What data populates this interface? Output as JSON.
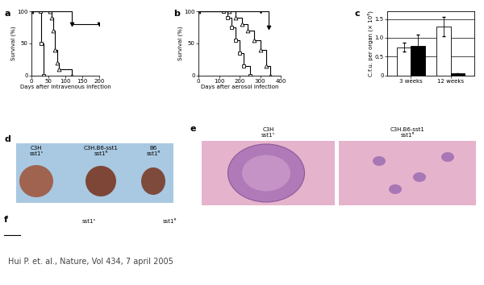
{
  "chart_data": [
    {
      "label": "a",
      "type": "line",
      "x_label": "Days after intravenous infection",
      "y_label": "Survival (%)",
      "xlim": [
        0,
        200
      ],
      "xticks": [
        0,
        50,
        100,
        150,
        200
      ],
      "ylim": [
        0,
        100
      ],
      "yticks": [
        0,
        50,
        100
      ],
      "series": [
        {
          "x": [
            0,
            25,
            28,
            35
          ],
          "values": [
            100,
            100,
            50,
            0
          ],
          "color": "#ffffff",
          "marker": "square",
          "line_style": "steps"
        },
        {
          "x": [
            0,
            55,
            60,
            65,
            70,
            75,
            80,
            120
          ],
          "values": [
            100,
            100,
            90,
            70,
            40,
            20,
            10,
            0
          ],
          "color": "#ffffff",
          "marker": "triangle",
          "line_style": "steps"
        },
        {
          "x": [
            0,
            120,
            200
          ],
          "values": [
            100,
            80,
            80
          ],
          "color": "#000000",
          "marker": "triangle_down",
          "line_style": "steps"
        }
      ]
    },
    {
      "label": "b",
      "type": "line",
      "x_label": "Days after aerosol infection",
      "y_label": "Survival (%)",
      "xlim": [
        0,
        400
      ],
      "xticks": [
        0,
        100,
        200,
        300,
        400
      ],
      "ylim": [
        0,
        100
      ],
      "yticks": [
        0,
        50,
        100
      ],
      "series": [
        {
          "x": [
            0,
            120,
            140,
            160,
            180,
            200,
            220,
            250
          ],
          "values": [
            100,
            100,
            90,
            75,
            55,
            35,
            15,
            0
          ],
          "color": "#ffffff",
          "marker": "square",
          "line_style": "steps"
        },
        {
          "x": [
            0,
            150,
            180,
            210,
            240,
            270,
            300,
            330,
            350
          ],
          "values": [
            100,
            100,
            90,
            80,
            70,
            55,
            40,
            15,
            0
          ],
          "color": "#ffffff",
          "marker": "triangle",
          "line_style": "steps"
        },
        {
          "x": [
            0,
            300,
            340
          ],
          "values": [
            100,
            100,
            75
          ],
          "color": "#000000",
          "marker": "triangle_down",
          "line_style": "steps"
        }
      ]
    },
    {
      "label": "c",
      "type": "bar",
      "y_label": "C.f.u. per organ (× 10⁶)",
      "categories": [
        "3 weeks",
        "12 weeks"
      ],
      "ylim": [
        0,
        1.7
      ],
      "yticks": [
        0,
        0.5,
        {
          "value": 1.0,
          "label": "1.0"
        },
        1.5
      ],
      "grid": true,
      "series": [
        {
          "values": [
            0.75,
            1.3
          ],
          "errors": [
            0.12,
            0.25
          ],
          "color": "#ffffff"
        },
        {
          "values": [
            0.78,
            0.05
          ],
          "errors": [
            0.3,
            0.02
          ],
          "color": "#000000"
        }
      ]
    }
  ],
  "panels": {
    "d": {
      "label": "d",
      "groups": [
        {
          "strain": "C3H",
          "genotype": "sst1ˢ"
        },
        {
          "strain": "C3H.B6-sst1",
          "genotype": "sst1ᴿ"
        },
        {
          "strain": "B6",
          "genotype": "sst1ᴿ"
        }
      ]
    },
    "e": {
      "label": "e",
      "groups": [
        {
          "strain": "C3H",
          "genotype": "sst1ˢ"
        },
        {
          "strain": "C3H.B6-sst1",
          "genotype": "sst1ᴿ"
        }
      ]
    },
    "f": {
      "label": "f",
      "groups": [
        "sst1ˢ",
        "sst1ᴿ"
      ]
    }
  },
  "caption": "Hui P. et. al., Nature, Vol 434, 7 april 2005"
}
